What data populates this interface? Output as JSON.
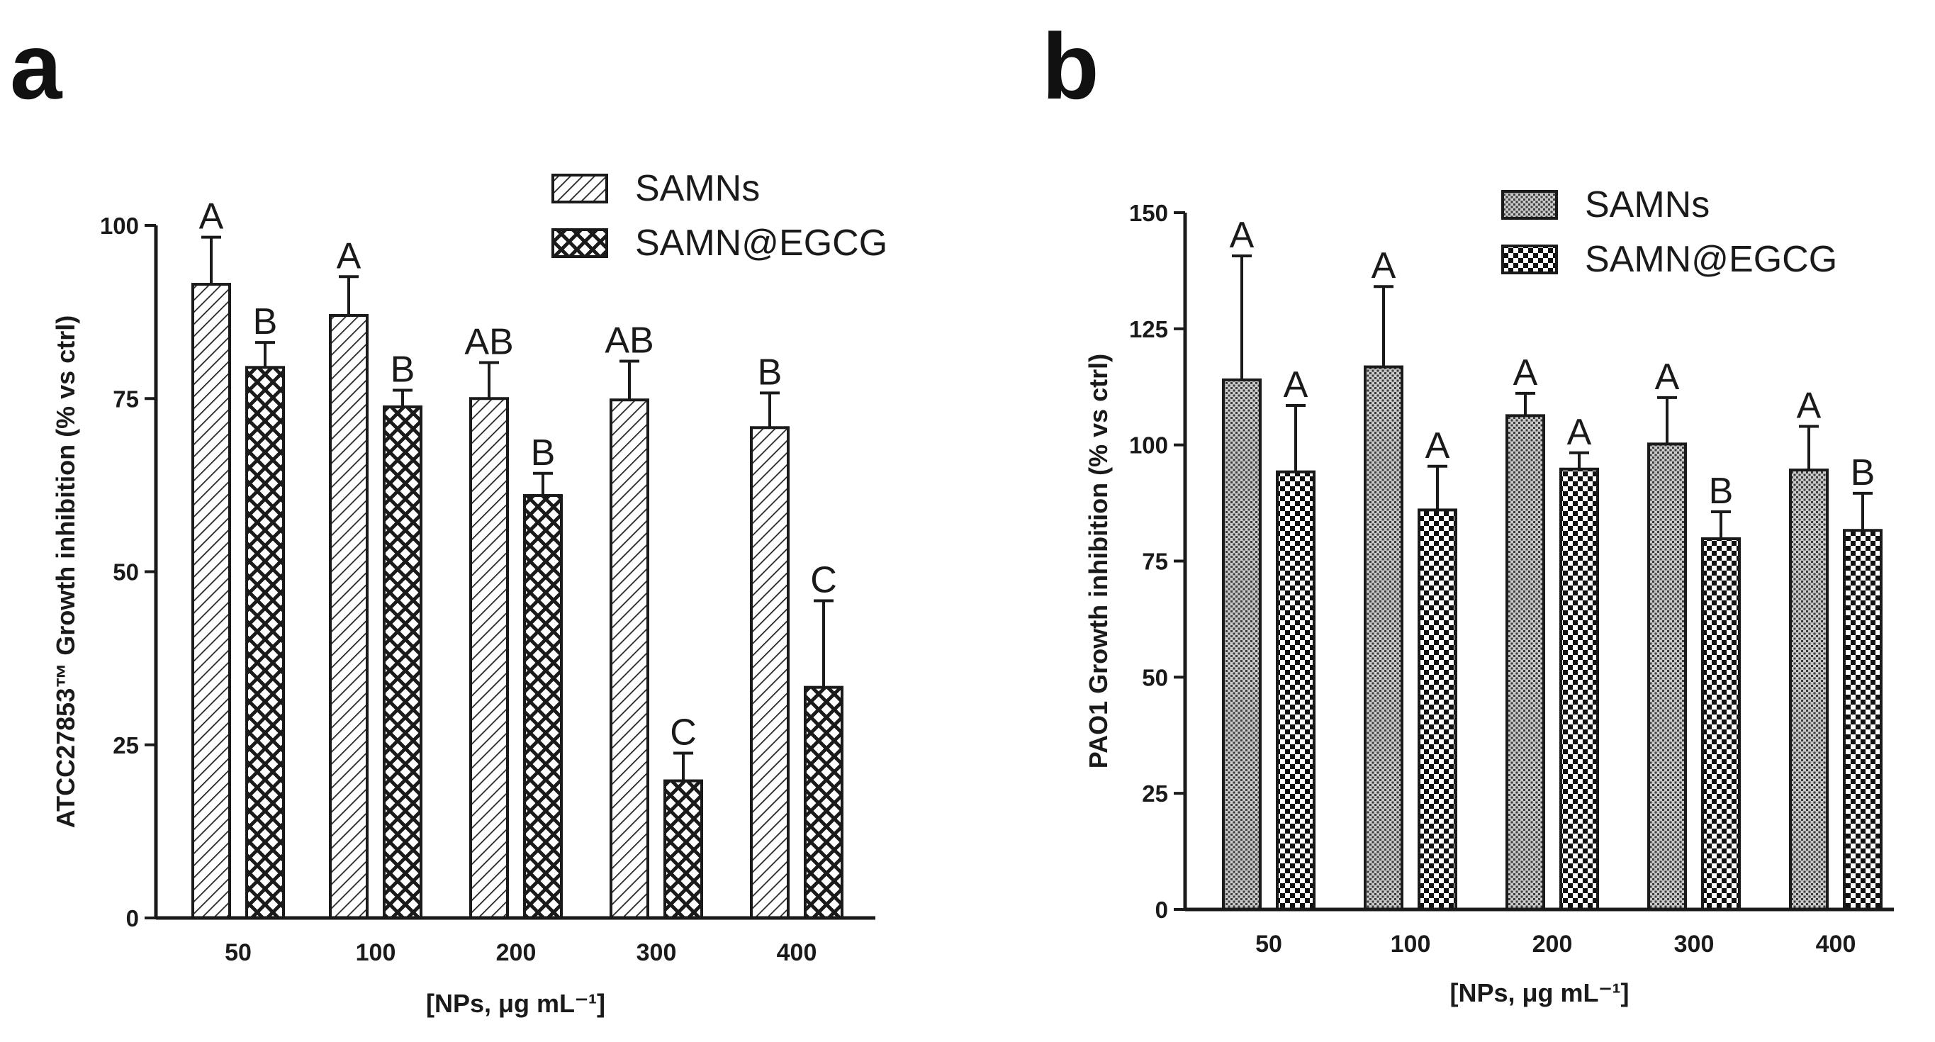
{
  "panels": {
    "a": {
      "label": "a"
    },
    "b": {
      "label": "b"
    }
  },
  "chart_data": [
    {
      "type": "bar",
      "panel": "a",
      "title": "",
      "xlabel": "[NPs, μg mL⁻¹]",
      "ylabel": "ATCC27853™ Growth inhibition (% vs ctrl)",
      "ylim": [
        0,
        100
      ],
      "yticks": [
        0,
        25,
        50,
        75,
        100
      ],
      "categories": [
        "50",
        "100",
        "200",
        "300",
        "400"
      ],
      "legend_position": "top-right",
      "series": [
        {
          "name": "SAMNs",
          "pattern": "diagonal-hatch",
          "values": [
            91.5,
            87,
            75,
            74.8,
            70.8
          ],
          "errors": [
            6.8,
            5.6,
            5.2,
            5.6,
            5.0
          ],
          "significance": [
            "A",
            "A",
            "AB",
            "AB",
            "B"
          ]
        },
        {
          "name": "SAMN@EGCG",
          "pattern": "cross-hatch",
          "values": [
            79.5,
            73.8,
            61,
            19.8,
            33.3
          ],
          "errors": [
            3.6,
            2.4,
            3.2,
            4.0,
            12.5
          ],
          "significance": [
            "B",
            "B",
            "B",
            "C",
            "C"
          ]
        }
      ]
    },
    {
      "type": "bar",
      "panel": "b",
      "title": "",
      "xlabel": "[NPs, μg mL⁻¹]",
      "ylabel": "PAO1 Growth inhibition (% vs ctrl)",
      "ylim": [
        0,
        150
      ],
      "yticks": [
        0,
        25,
        50,
        75,
        100,
        125,
        150
      ],
      "categories": [
        "50",
        "100",
        "200",
        "300",
        "400"
      ],
      "legend_position": "top-right",
      "series": [
        {
          "name": "SAMNs",
          "pattern": "fine-dots",
          "values": [
            114,
            116.8,
            106.3,
            100.2,
            94.6
          ],
          "errors": [
            26.7,
            17.3,
            4.8,
            10.0,
            9.4
          ],
          "significance": [
            "A",
            "A",
            "A",
            "A",
            "A"
          ]
        },
        {
          "name": "SAMN@EGCG",
          "pattern": "checkerboard",
          "values": [
            94.2,
            86,
            94.8,
            79.8,
            81.6
          ],
          "errors": [
            14.3,
            9.4,
            3.5,
            5.8,
            8.0
          ],
          "significance": [
            "A",
            "A",
            "A",
            "B",
            "B"
          ]
        }
      ]
    }
  ]
}
